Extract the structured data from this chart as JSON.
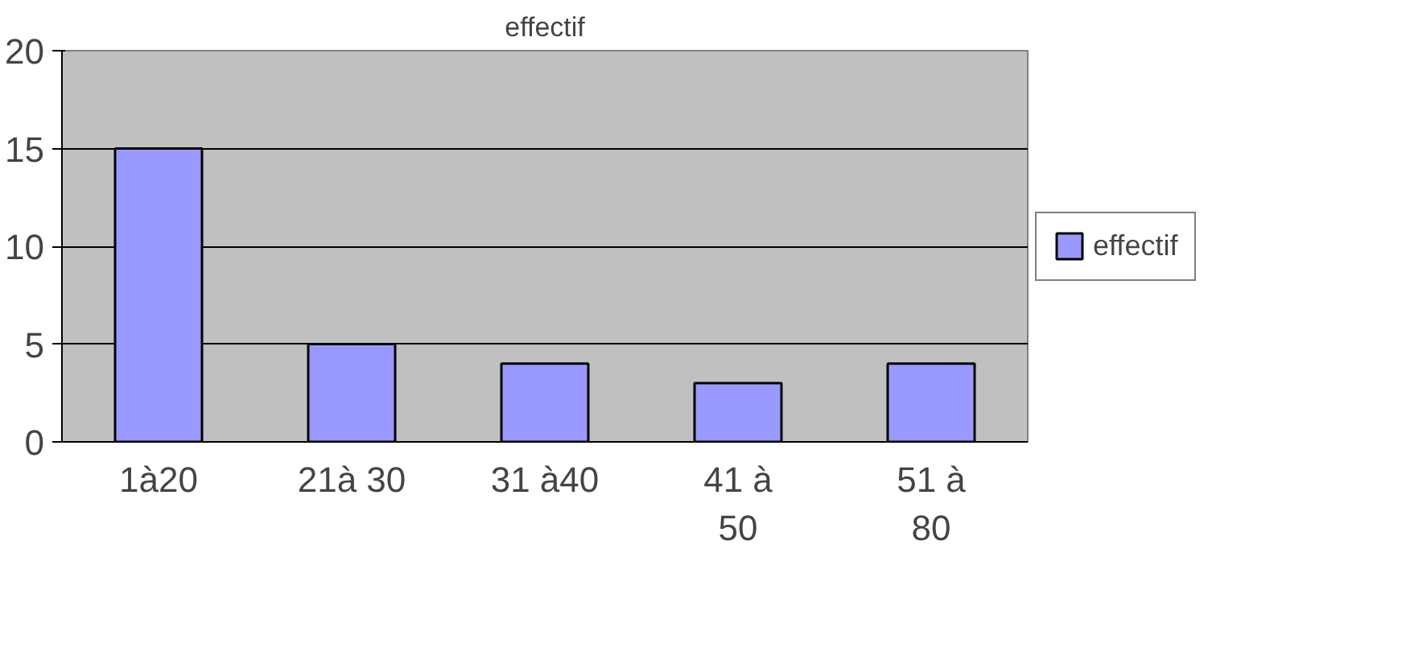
{
  "chart_data": {
    "type": "bar",
    "title": "effectif",
    "categories": [
      "1à20",
      "21à 30",
      "31 à40",
      "41 à\n50",
      "51 à\n80"
    ],
    "series": [
      {
        "name": "effectif",
        "color": "#9999ff",
        "values": [
          15,
          5,
          4,
          3,
          4
        ]
      }
    ],
    "ylim": [
      0,
      20
    ],
    "yticks": [
      0,
      5,
      10,
      15,
      20
    ],
    "grid": "y",
    "legend": "right"
  }
}
